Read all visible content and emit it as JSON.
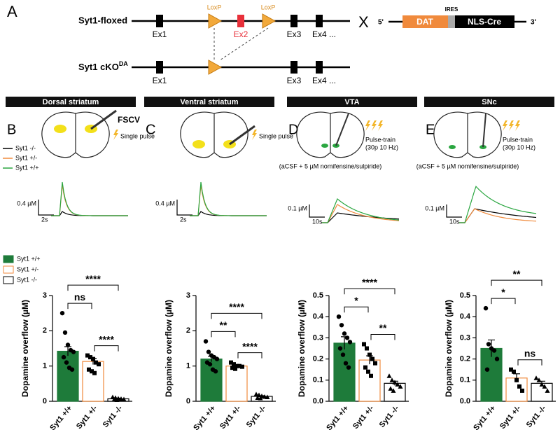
{
  "panel_a": {
    "letter": "A",
    "row1_label": "Syt1-floxed",
    "row2_label": "Syt1 cKO",
    "row2_sup": "DA",
    "loxp": "LoxP",
    "exons": [
      "Ex1",
      "Ex2",
      "Ex3",
      "Ex4 ..."
    ],
    "cross": "X",
    "construct": {
      "five": "5'",
      "dat": "DAT",
      "ires": "IRES",
      "cre": "NLS-Cre",
      "three": "3'"
    }
  },
  "panels": [
    {
      "letter": "B",
      "header": "Dorsal striatum",
      "probe": "FSCV",
      "stim": "Single pulse",
      "scale_y": "0.4 µM",
      "scale_x": "2s"
    },
    {
      "letter": "C",
      "header": "Ventral striatum",
      "stim": "Single pulse",
      "scale_y": "0.4 µM",
      "scale_x": "2s"
    },
    {
      "letter": "D",
      "header": "VTA",
      "stim": "Pulse-train",
      "stim_detail": "(30p 10 Hz)",
      "condition": "(aCSF + 5 µM nomifensine/sulpiride)",
      "scale_y": "0.1 µM",
      "scale_x": "10s"
    },
    {
      "letter": "E",
      "header": "SNc",
      "stim": "Pulse-train",
      "stim_detail": "(30p 10 Hz)",
      "condition": "(aCSF + 5 µM nomifensine/sulpiride)",
      "scale_y": "0.1 µM",
      "scale_x": "10s"
    }
  ],
  "trace_legend": [
    {
      "name": "Syt1 -/-",
      "color": "#000000"
    },
    {
      "name": "Syt1 +/-",
      "color": "#f08a3c"
    },
    {
      "name": "Syt1 +/+",
      "color": "#2aa640"
    }
  ],
  "bar_legend": [
    {
      "name": "Syt1 +/+",
      "fill": "#1e7b3a",
      "stroke": "#1e7b3a"
    },
    {
      "name": "Syt1 +/-",
      "fill": "#ffffff",
      "stroke": "#f08a3c"
    },
    {
      "name": "Syt1 -/-",
      "fill": "#ffffff",
      "stroke": "#000000"
    }
  ],
  "chart_data": [
    {
      "type": "bar",
      "y_label": "Dopamine overflow (µM)",
      "categories": [
        "Syt1 +/+",
        "Syt1 +/-",
        "Syt1 -/-"
      ],
      "values": [
        1.42,
        1.13,
        0.07
      ],
      "errors": [
        0.13,
        0.09,
        0.02
      ],
      "points": [
        [
          2.5,
          1.95,
          1.6,
          1.45,
          1.4,
          1.25,
          1.1,
          0.95,
          0.9
        ],
        [
          1.3,
          1.25,
          1.2,
          1.1,
          1.05,
          0.9,
          0.85,
          0.8
        ],
        [
          0.12,
          0.1,
          0.08,
          0.07,
          0.06,
          0.05,
          0.04
        ]
      ],
      "fills": [
        "#1e7b3a",
        "#ffffff",
        "#ffffff"
      ],
      "strokes": [
        "#1e7b3a",
        "#f08a3c",
        "#000000"
      ],
      "ylim": [
        0,
        3
      ],
      "yticks": [
        0,
        1,
        2,
        3
      ],
      "annotations": [
        "ns",
        "****",
        "****"
      ]
    },
    {
      "type": "bar",
      "y_label": "Dopamine overflow (µM)",
      "categories": [
        "Syt1 +/+",
        "Syt1 +/-",
        "Syt1 -/-"
      ],
      "values": [
        1.2,
        1.0,
        0.14
      ],
      "errors": [
        0.08,
        0.04,
        0.02
      ],
      "points": [
        [
          1.7,
          1.4,
          1.3,
          1.25,
          1.2,
          1.1,
          1.05,
          0.9,
          0.85
        ],
        [
          1.1,
          1.05,
          1.0,
          1.0,
          0.98,
          0.95,
          0.92
        ],
        [
          0.2,
          0.18,
          0.15,
          0.13,
          0.12,
          0.1,
          0.09
        ]
      ],
      "fills": [
        "#1e7b3a",
        "#ffffff",
        "#ffffff"
      ],
      "strokes": [
        "#1e7b3a",
        "#f08a3c",
        "#000000"
      ],
      "ylim": [
        0,
        3
      ],
      "yticks": [
        0,
        1,
        2,
        3
      ],
      "annotations": [
        "**",
        "****",
        "****"
      ]
    },
    {
      "type": "bar",
      "y_label": "Dopamine overflow (µM)",
      "categories": [
        "Syt1 +/+",
        "Syt1 +/-",
        "Syt1 -/-"
      ],
      "values": [
        0.275,
        0.195,
        0.085
      ],
      "errors": [
        0.03,
        0.02,
        0.01
      ],
      "points": [
        [
          0.4,
          0.36,
          0.32,
          0.3,
          0.28,
          0.25,
          0.22,
          0.18,
          0.16
        ],
        [
          0.27,
          0.25,
          0.22,
          0.2,
          0.18,
          0.16,
          0.14,
          0.12
        ],
        [
          0.12,
          0.1,
          0.09,
          0.08,
          0.07,
          0.06,
          0.05
        ]
      ],
      "fills": [
        "#1e7b3a",
        "#ffffff",
        "#ffffff"
      ],
      "strokes": [
        "#1e7b3a",
        "#f08a3c",
        "#000000"
      ],
      "ylim": [
        0,
        0.5
      ],
      "yticks": [
        {
          "value": 0,
          "label": "0.0"
        },
        0.1,
        0.2,
        0.3,
        0.4,
        0.5
      ],
      "annotations": [
        "*",
        "**",
        "****"
      ]
    },
    {
      "type": "bar",
      "y_label": "Dopamine overflow (µM)",
      "categories": [
        "Syt1 +/+",
        "Syt1 +/-",
        "Syt1 -/-"
      ],
      "values": [
        0.25,
        0.11,
        0.085
      ],
      "errors": [
        0.04,
        0.02,
        0.01
      ],
      "points": [
        [
          0.44,
          0.27,
          0.25,
          0.24,
          0.2,
          0.15
        ],
        [
          0.15,
          0.14,
          0.1,
          0.07,
          0.05
        ],
        [
          0.11,
          0.1,
          0.08,
          0.07,
          0.05
        ]
      ],
      "fills": [
        "#1e7b3a",
        "#ffffff",
        "#ffffff"
      ],
      "strokes": [
        "#1e7b3a",
        "#f08a3c",
        "#000000"
      ],
      "ylim": [
        0,
        0.5
      ],
      "yticks": [
        {
          "value": 0,
          "label": "0.0"
        },
        0.1,
        0.2,
        0.3,
        0.4,
        0.5
      ],
      "annotations": [
        "*",
        "ns",
        "**"
      ]
    }
  ]
}
